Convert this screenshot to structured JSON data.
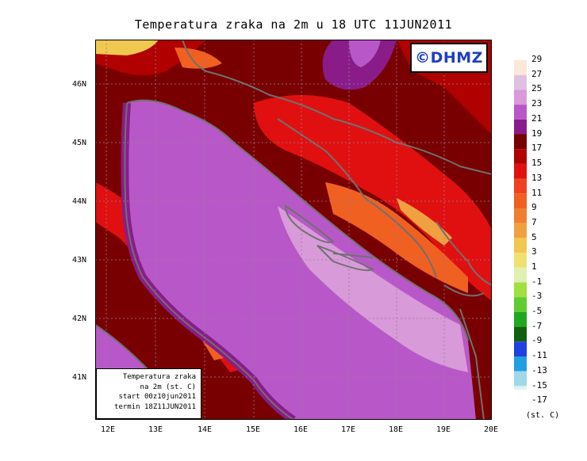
{
  "title": "Temperatura zraka na 2m u 18 UTC 11JUN2011",
  "logo": "©DHMZ",
  "info_box": {
    "line1": "Temperatura zraka",
    "line2": "na 2m (st. C)",
    "line3": "start 00z10jun2011",
    "line4": "termin 18Z11JUN2011"
  },
  "lat_labels": [
    "46N",
    "45N",
    "44N",
    "43N",
    "42N",
    "41N"
  ],
  "lon_labels": [
    "12E",
    "13E",
    "14E",
    "15E",
    "16E",
    "17E",
    "18E",
    "19E",
    "20E"
  ],
  "legend": {
    "unit": "(st. C)",
    "levels": [
      "29",
      "27",
      "25",
      "23",
      "21",
      "19",
      "17",
      "15",
      "13",
      "11",
      "9",
      "7",
      "5",
      "3",
      "1",
      "-1",
      "-3",
      "-5",
      "-7",
      "-9",
      "-11",
      "-13",
      "-15",
      "-17"
    ],
    "colors": [
      "#fde8d8",
      "#e0c0e0",
      "#d89ad8",
      "#b858c8",
      "#8a1c8a",
      "#780000",
      "#b00000",
      "#e01010",
      "#f04020",
      "#f06020",
      "#f08030",
      "#f0a040",
      "#f0c850",
      "#f0e070",
      "#e0f0b0",
      "#a0e040",
      "#60cc30",
      "#20a820",
      "#106010",
      "#2040e0",
      "#20a0e0",
      "#a0d8e8",
      "#e0f4f4"
    ]
  },
  "field_colors": {
    "sea_main": "#b858c8",
    "sea_warm": "#d89ad8",
    "sea_coast": "#8a1c8a",
    "land_dark": "#780000",
    "land_mid": "#b00000",
    "land_red": "#e01010",
    "land_orange": "#f06020",
    "land_yellow": "#f0c850",
    "coastline": "#707070"
  }
}
